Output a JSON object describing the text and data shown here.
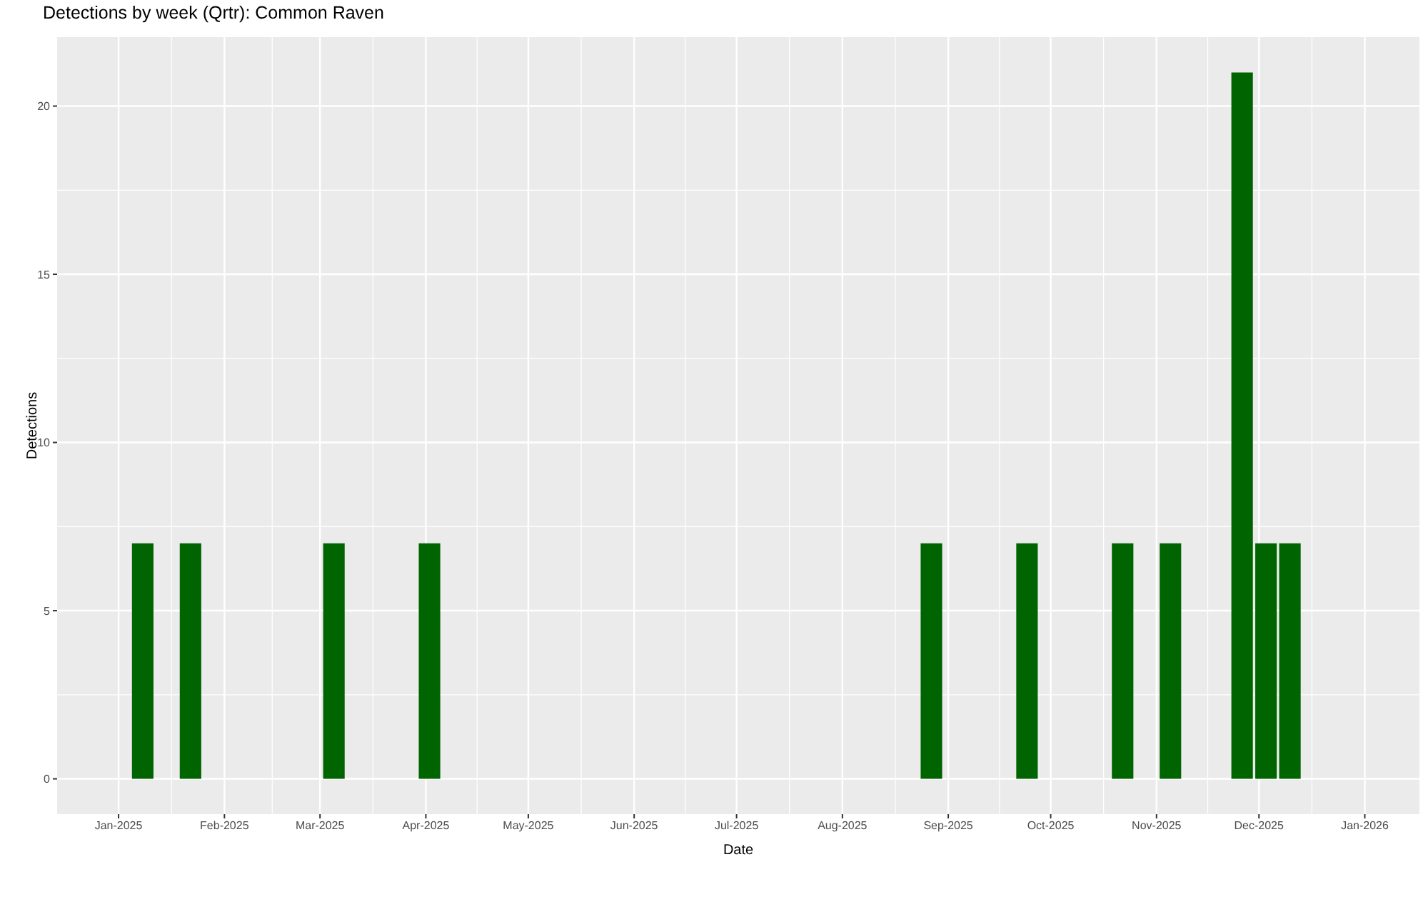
{
  "chart_data": {
    "type": "bar",
    "title": "Detections by week (Qrtr): Common Raven",
    "xlabel": "Date",
    "ylabel": "Detections",
    "x": [
      "2025-01-08",
      "2025-01-22",
      "2025-03-05",
      "2025-04-02",
      "2025-08-27",
      "2025-09-24",
      "2025-10-22",
      "2025-11-05",
      "2025-11-26",
      "2025-12-03",
      "2025-12-10"
    ],
    "values": [
      7,
      7,
      7,
      7,
      7,
      7,
      7,
      7,
      21,
      7,
      7
    ],
    "color": "#006400",
    "xlim": [
      "2024-12-14",
      "2026-01-17"
    ],
    "xticks": [
      {
        "value": "2025-01-01",
        "label": "Jan-2025"
      },
      {
        "value": "2025-02-01",
        "label": "Feb-2025"
      },
      {
        "value": "2025-03-01",
        "label": "Mar-2025"
      },
      {
        "value": "2025-04-01",
        "label": "Apr-2025"
      },
      {
        "value": "2025-05-01",
        "label": "May-2025"
      },
      {
        "value": "2025-06-01",
        "label": "Jun-2025"
      },
      {
        "value": "2025-07-01",
        "label": "Jul-2025"
      },
      {
        "value": "2025-08-01",
        "label": "Aug-2025"
      },
      {
        "value": "2025-09-01",
        "label": "Sep-2025"
      },
      {
        "value": "2025-10-01",
        "label": "Oct-2025"
      },
      {
        "value": "2025-11-01",
        "label": "Nov-2025"
      },
      {
        "value": "2025-12-01",
        "label": "Dec-2025"
      },
      {
        "value": "2026-01-01",
        "label": "Jan-2026"
      }
    ],
    "ylim": [
      -1.05,
      22.05
    ],
    "yticks": [
      0,
      5,
      10,
      15,
      20
    ],
    "grid": true
  }
}
